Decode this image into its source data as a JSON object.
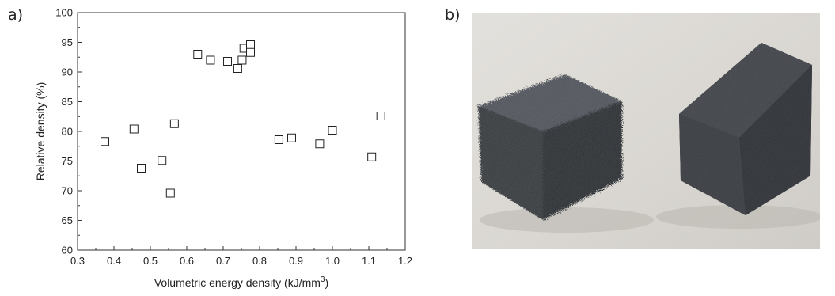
{
  "panels": {
    "a": "a)",
    "b": "b)"
  },
  "chart_data": {
    "type": "scatter",
    "xlabel": "Volumetric energy density (kJ/mm",
    "xlabel_sup": "3",
    "xlabel_end": ")",
    "ylabel": "Relative density (%)",
    "xlim": [
      0.3,
      1.2
    ],
    "ylim": [
      60,
      100
    ],
    "xticks": [
      0.3,
      0.4,
      0.5,
      0.6,
      0.7,
      0.8,
      0.9,
      1.0,
      1.1,
      1.2
    ],
    "xtick_labels": [
      "0.3",
      "0.4",
      "0.5",
      "0.6",
      "0.7",
      "0.8",
      "0.9",
      "1.0",
      "1.1",
      "1.2"
    ],
    "yticks": [
      60,
      65,
      70,
      75,
      80,
      85,
      90,
      95,
      100
    ],
    "ytick_labels": [
      "60",
      "65",
      "70",
      "75",
      "80",
      "85",
      "90",
      "95",
      "100"
    ],
    "marker": "open-square",
    "points": [
      {
        "x": 0.375,
        "y": 78.3
      },
      {
        "x": 0.455,
        "y": 80.4
      },
      {
        "x": 0.475,
        "y": 73.8
      },
      {
        "x": 0.532,
        "y": 75.1
      },
      {
        "x": 0.555,
        "y": 69.6
      },
      {
        "x": 0.566,
        "y": 81.3
      },
      {
        "x": 0.63,
        "y": 93.0
      },
      {
        "x": 0.665,
        "y": 92.0
      },
      {
        "x": 0.712,
        "y": 91.8
      },
      {
        "x": 0.74,
        "y": 90.6
      },
      {
        "x": 0.752,
        "y": 92.0
      },
      {
        "x": 0.757,
        "y": 94.0
      },
      {
        "x": 0.775,
        "y": 94.6
      },
      {
        "x": 0.775,
        "y": 93.3
      },
      {
        "x": 0.853,
        "y": 78.6
      },
      {
        "x": 0.888,
        "y": 78.9
      },
      {
        "x": 0.965,
        "y": 77.9
      },
      {
        "x": 1.0,
        "y": 80.2
      },
      {
        "x": 1.108,
        "y": 75.7
      },
      {
        "x": 1.133,
        "y": 82.6
      }
    ]
  },
  "photo": {
    "subject": "two-black-porous-cube-samples"
  }
}
